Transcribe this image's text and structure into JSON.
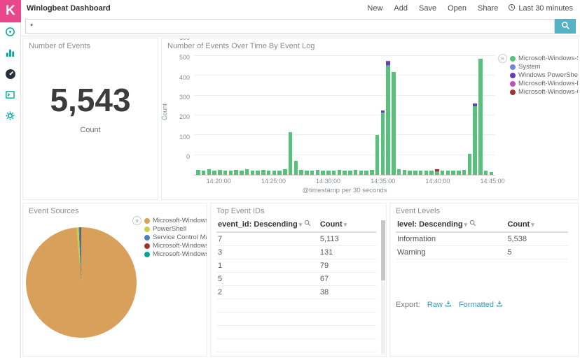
{
  "app": {
    "logo_letter": "K",
    "brand_color": "#e8478b",
    "accent_teal": "#00a69b",
    "link_color": "#2f9bc1",
    "search_button_color": "#53b2c3"
  },
  "header": {
    "title": "Winlogbeat Dashboard",
    "nav": [
      "New",
      "Add",
      "Save",
      "Open",
      "Share"
    ],
    "time_picker_label": "Last 30 minutes"
  },
  "search": {
    "value": "*"
  },
  "sidebar": {
    "items": [
      {
        "name": "discover",
        "icon": "compass-icon",
        "active": false
      },
      {
        "name": "visualize",
        "icon": "bar-chart-icon",
        "active": false
      },
      {
        "name": "dashboard",
        "icon": "gauge-icon",
        "active": true
      },
      {
        "name": "dev-tools",
        "icon": "console-icon",
        "active": false
      },
      {
        "name": "management",
        "icon": "gear-icon",
        "active": false
      }
    ]
  },
  "panels": {
    "metric": {
      "title": "Number of Events",
      "value": "5,543",
      "label": "Count"
    },
    "timechart": {
      "title": "Number of Events Over Time By Event Log"
    },
    "pie": {
      "title": "Event Sources"
    },
    "top_ids": {
      "title": "Top Event IDs",
      "columns": [
        "event_id: Descending",
        "Count"
      ],
      "rows": [
        [
          "7",
          "5,113"
        ],
        [
          "3",
          "131"
        ],
        [
          "1",
          "79"
        ],
        [
          "5",
          "67"
        ],
        [
          "2",
          "38"
        ]
      ]
    },
    "levels": {
      "title": "Event Levels",
      "columns": [
        "level: Descending",
        "Count"
      ],
      "rows": [
        [
          "Information",
          "5,538"
        ],
        [
          "Warning",
          "5"
        ]
      ],
      "export_label": "Export:",
      "export_links": [
        "Raw",
        "Formatted"
      ]
    }
  },
  "chart_data": [
    {
      "type": "bar",
      "stacked": true,
      "title": "Number of Events Over Time By Event Log",
      "xlabel": "@timestamp per 30 seconds",
      "ylabel": "Count",
      "ylim": [
        0,
        600
      ],
      "ytick_step": 100,
      "grid": true,
      "legend_position": "right",
      "x": [
        "14:18:00",
        "14:18:30",
        "14:19:00",
        "14:19:30",
        "14:20:00",
        "14:20:30",
        "14:21:00",
        "14:21:30",
        "14:22:00",
        "14:22:30",
        "14:23:00",
        "14:23:30",
        "14:24:00",
        "14:24:30",
        "14:25:00",
        "14:25:30",
        "14:26:00",
        "14:26:30",
        "14:27:00",
        "14:27:30",
        "14:28:00",
        "14:28:30",
        "14:29:00",
        "14:29:30",
        "14:30:00",
        "14:30:30",
        "14:31:00",
        "14:31:30",
        "14:32:00",
        "14:32:30",
        "14:33:00",
        "14:33:30",
        "14:34:00",
        "14:34:30",
        "14:35:00",
        "14:35:30",
        "14:36:00",
        "14:36:30",
        "14:37:00",
        "14:37:30",
        "14:38:00",
        "14:38:30",
        "14:39:00",
        "14:39:30",
        "14:40:00",
        "14:40:30",
        "14:41:00",
        "14:41:30",
        "14:42:00",
        "14:42:30",
        "14:43:00",
        "14:43:30",
        "14:44:00",
        "14:44:30",
        "14:45:00"
      ],
      "xtick_labels": [
        "14:20:00",
        "14:25:00",
        "14:30:00",
        "14:35:00",
        "14:40:00",
        "14:45:00"
      ],
      "series": [
        {
          "name": "Microsoft-Windows-S...",
          "color": "#57c17b",
          "values": [
            25,
            22,
            28,
            22,
            25,
            20,
            22,
            25,
            20,
            28,
            22,
            20,
            25,
            22,
            20,
            22,
            30,
            215,
            70,
            25,
            22,
            20,
            25,
            22,
            20,
            22,
            25,
            20,
            22,
            25,
            20,
            22,
            25,
            200,
            315,
            550,
            520,
            30,
            25,
            20,
            22,
            20,
            22,
            20,
            18,
            22,
            20,
            22,
            20,
            25,
            105,
            345,
            585,
            20,
            15
          ]
        },
        {
          "name": "System",
          "color": "#6f87d8",
          "values": [
            0,
            0,
            0,
            0,
            0,
            0,
            0,
            0,
            0,
            0,
            0,
            0,
            0,
            0,
            0,
            0,
            0,
            0,
            0,
            0,
            0,
            0,
            0,
            0,
            0,
            0,
            0,
            0,
            0,
            0,
            0,
            0,
            0,
            0,
            0,
            4,
            0,
            0,
            0,
            0,
            0,
            0,
            0,
            0,
            0,
            0,
            0,
            0,
            0,
            0,
            0,
            0,
            0,
            0,
            0
          ]
        },
        {
          "name": "Windows PowerShell",
          "color": "#663db8",
          "values": [
            0,
            0,
            0,
            0,
            0,
            0,
            0,
            0,
            0,
            0,
            0,
            0,
            0,
            0,
            0,
            0,
            0,
            0,
            0,
            0,
            0,
            0,
            0,
            0,
            0,
            0,
            0,
            0,
            0,
            0,
            0,
            0,
            0,
            0,
            10,
            18,
            0,
            0,
            0,
            0,
            0,
            0,
            0,
            0,
            0,
            0,
            0,
            0,
            0,
            0,
            0,
            15,
            0,
            0,
            0
          ]
        },
        {
          "name": "Microsoft-Windows-P...",
          "color": "#bc52bc",
          "values": [
            0,
            0,
            0,
            0,
            0,
            0,
            0,
            0,
            0,
            0,
            0,
            0,
            0,
            0,
            0,
            0,
            0,
            0,
            0,
            0,
            0,
            0,
            0,
            0,
            0,
            0,
            0,
            0,
            0,
            0,
            0,
            0,
            0,
            0,
            0,
            5,
            0,
            0,
            0,
            0,
            0,
            0,
            0,
            0,
            0,
            0,
            0,
            0,
            0,
            0,
            0,
            0,
            0,
            0,
            0
          ]
        },
        {
          "name": "Microsoft-Windows-G...",
          "color": "#9e3533",
          "values": [
            0,
            0,
            0,
            0,
            0,
            0,
            0,
            0,
            0,
            0,
            0,
            0,
            0,
            0,
            0,
            0,
            0,
            0,
            0,
            0,
            0,
            0,
            0,
            0,
            0,
            0,
            0,
            0,
            0,
            0,
            0,
            0,
            0,
            0,
            0,
            0,
            0,
            0,
            0,
            0,
            0,
            0,
            0,
            0,
            12,
            0,
            0,
            0,
            0,
            0,
            0,
            0,
            0,
            0,
            0
          ]
        }
      ]
    },
    {
      "type": "pie",
      "title": "Event Sources",
      "labels": [
        "Microsoft-Windows-S...",
        "PowerShell",
        "Service Control Mana...",
        "Microsoft-Windows-P...",
        "Microsoft-Windows-G..."
      ],
      "values": [
        5465,
        38,
        20,
        12,
        8
      ],
      "colors": [
        "#d9a05b",
        "#cbd04b",
        "#4d7ec0",
        "#9e3533",
        "#00a69b"
      ],
      "legend_position": "top-right"
    }
  ]
}
